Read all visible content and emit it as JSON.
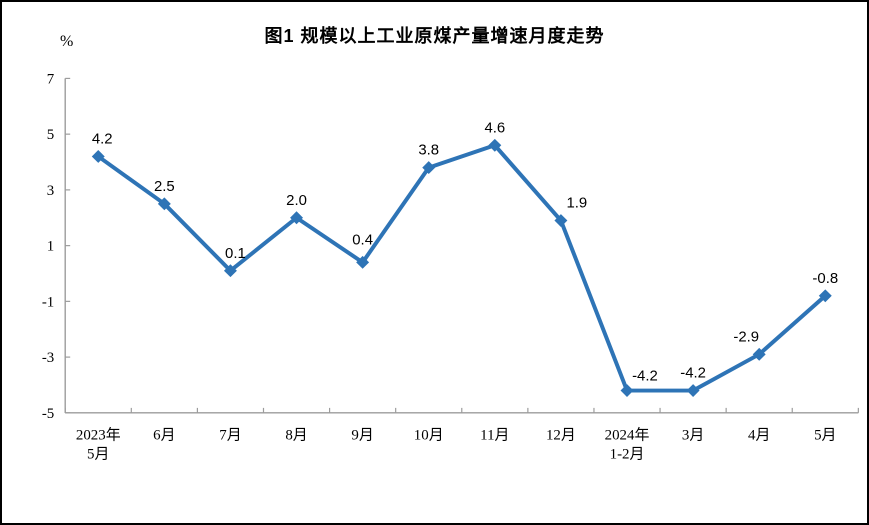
{
  "header": {
    "title": "图1  规模以上工业原煤产量增速月度走势",
    "unit_label": "%"
  },
  "chart_data": {
    "type": "line",
    "title": "图1  规模以上工业原煤产量增速月度走势",
    "ylabel": "%",
    "xlabel": "",
    "categories": [
      "2023年\n5月",
      "6月",
      "7月",
      "8月",
      "9月",
      "10月",
      "11月",
      "12月",
      "2024年\n1-2月",
      "3月",
      "4月",
      "5月"
    ],
    "values": [
      4.2,
      2.5,
      0.1,
      2.0,
      0.4,
      3.8,
      4.6,
      1.9,
      -4.2,
      -4.2,
      -2.9,
      -0.8
    ],
    "data_labels": [
      "4.2",
      "2.5",
      "0.1",
      "2.0",
      "0.4",
      "3.8",
      "4.6",
      "1.9",
      "-4.2",
      "-4.2",
      "-2.9",
      "-0.8"
    ],
    "ylim": [
      -5,
      7
    ],
    "yticks": [
      7,
      5,
      3,
      1,
      -1,
      -3,
      -5
    ],
    "grid": false,
    "legend": "none",
    "series_name": "规模以上工业原煤产量增速",
    "series_color": "#2E74B6",
    "marker": "diamond",
    "axis_color": "#9c9c9c"
  }
}
